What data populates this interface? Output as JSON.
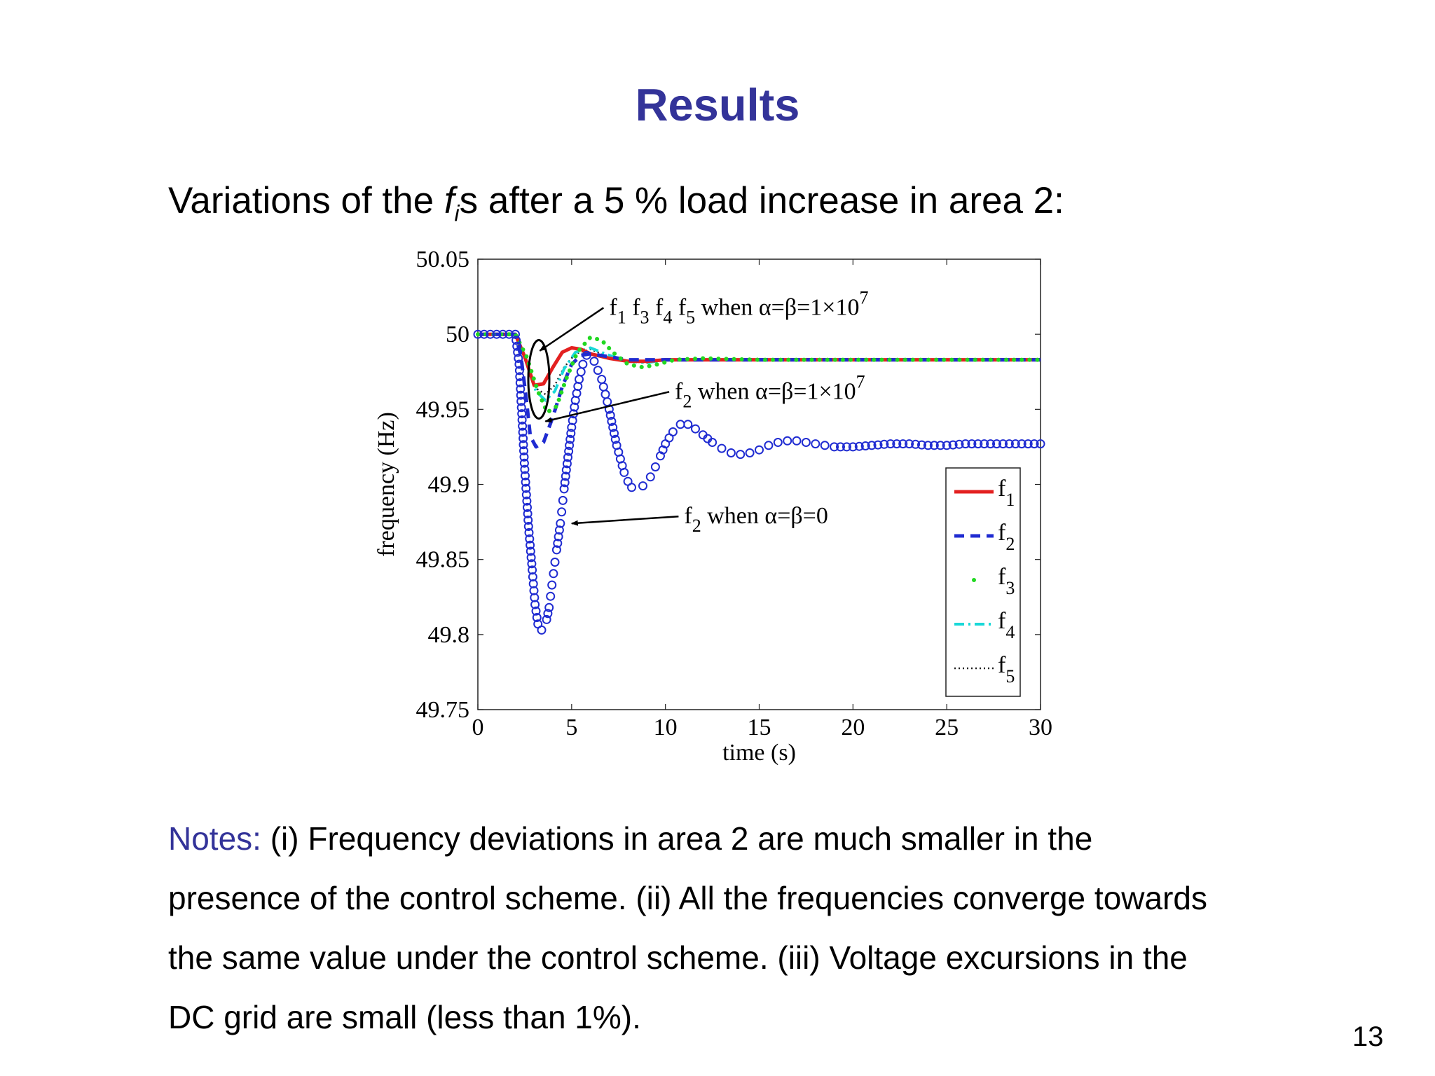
{
  "slide": {
    "title": "Results",
    "subtitle_pre": "Variations of the ",
    "subtitle_f": "f",
    "subtitle_sub": "i",
    "subtitle_post": "s after a 5 % load increase in area 2:",
    "notes_label": "Notes:",
    "notes_text": " (i) Frequency deviations in area 2 are much smaller in the presence of the control scheme. (ii) All the frequencies converge towards the same value under the control scheme. (iii) Voltage excursions in the DC grid are small (less than 1%).",
    "page_number": "13"
  },
  "chart_data": {
    "type": "line",
    "title": "",
    "xlabel": "time (s)",
    "ylabel": "frequency (Hz)",
    "xlim": [
      0,
      30
    ],
    "ylim": [
      49.75,
      50.05
    ],
    "xticks": [
      "0",
      "5",
      "10",
      "15",
      "20",
      "25",
      "30"
    ],
    "yticks": [
      "49.75",
      "49.8",
      "49.85",
      "49.9",
      "49.95",
      "50",
      "50.05"
    ],
    "grid": false,
    "legend_position": "bottom-right",
    "colors": {
      "f1": "#e32020",
      "f2": "#1f2bd1",
      "f3": "#22d822",
      "f4": "#19d8d8",
      "f5": "#222222",
      "f2_alpha_beta_0": "#1f2bd1"
    },
    "series": [
      {
        "name": "f1",
        "label": "1",
        "style": "solid",
        "points": [
          [
            0,
            50
          ],
          [
            2,
            50
          ],
          [
            2.5,
            49.985
          ],
          [
            3,
            49.966
          ],
          [
            3.5,
            49.967
          ],
          [
            4,
            49.978
          ],
          [
            4.5,
            49.988
          ],
          [
            5,
            49.991
          ],
          [
            5.5,
            49.99
          ],
          [
            6,
            49.987
          ],
          [
            7,
            49.984
          ],
          [
            8,
            49.982
          ],
          [
            9,
            49.982
          ],
          [
            10,
            49.983
          ],
          [
            12,
            49.983
          ],
          [
            15,
            49.983
          ],
          [
            20,
            49.983
          ],
          [
            25,
            49.983
          ],
          [
            30,
            49.983
          ]
        ]
      },
      {
        "name": "f2",
        "label": "2",
        "style": "dashed",
        "points": [
          [
            0,
            50
          ],
          [
            2,
            50
          ],
          [
            2.3,
            49.985
          ],
          [
            2.6,
            49.955
          ],
          [
            2.8,
            49.932
          ],
          [
            3.1,
            49.925
          ],
          [
            3.5,
            49.928
          ],
          [
            4,
            49.945
          ],
          [
            4.5,
            49.965
          ],
          [
            5,
            49.98
          ],
          [
            5.5,
            49.986
          ],
          [
            6,
            49.987
          ],
          [
            7,
            49.985
          ],
          [
            8,
            49.983
          ],
          [
            10,
            49.983
          ],
          [
            15,
            49.983
          ],
          [
            20,
            49.983
          ],
          [
            25,
            49.983
          ],
          [
            30,
            49.983
          ]
        ]
      },
      {
        "name": "f3",
        "label": "3",
        "style": "dots",
        "points": [
          [
            0,
            50
          ],
          [
            2,
            50
          ],
          [
            2.6,
            49.985
          ],
          [
            3.2,
            49.962
          ],
          [
            3.7,
            49.948
          ],
          [
            4.2,
            49.952
          ],
          [
            4.7,
            49.97
          ],
          [
            5.3,
            49.988
          ],
          [
            6,
            49.998
          ],
          [
            6.6,
            49.996
          ],
          [
            7.2,
            49.988
          ],
          [
            8,
            49.98
          ],
          [
            8.8,
            49.978
          ],
          [
            9.6,
            49.98
          ],
          [
            10.5,
            49.983
          ],
          [
            12,
            49.984
          ],
          [
            15,
            49.983
          ],
          [
            20,
            49.983
          ],
          [
            25,
            49.983
          ],
          [
            30,
            49.983
          ]
        ]
      },
      {
        "name": "f4",
        "label": "4",
        "style": "dashdot",
        "points": [
          [
            0,
            50
          ],
          [
            2,
            50
          ],
          [
            2.5,
            49.985
          ],
          [
            3.1,
            49.962
          ],
          [
            3.6,
            49.956
          ],
          [
            4.1,
            49.962
          ],
          [
            4.6,
            49.977
          ],
          [
            5.2,
            49.988
          ],
          [
            6,
            49.991
          ],
          [
            7,
            49.986
          ],
          [
            8,
            49.982
          ],
          [
            9,
            49.981
          ],
          [
            10,
            49.983
          ],
          [
            15,
            49.983
          ],
          [
            20,
            49.983
          ],
          [
            25,
            49.983
          ],
          [
            30,
            49.983
          ]
        ]
      },
      {
        "name": "f5",
        "label": "5",
        "style": "dotted",
        "points": [
          [
            0,
            50
          ],
          [
            2,
            50
          ],
          [
            2.5,
            49.985
          ],
          [
            3.1,
            49.964
          ],
          [
            3.6,
            49.96
          ],
          [
            4.1,
            49.966
          ],
          [
            4.6,
            49.978
          ],
          [
            5.2,
            49.987
          ],
          [
            6,
            49.99
          ],
          [
            7,
            49.985
          ],
          [
            8,
            49.982
          ],
          [
            9,
            49.981
          ],
          [
            10,
            49.983
          ],
          [
            15,
            49.983
          ],
          [
            20,
            49.983
          ],
          [
            25,
            49.983
          ],
          [
            30,
            49.983
          ]
        ]
      },
      {
        "name": "",
        "style": "circles",
        "points": [
          [
            0,
            50
          ],
          [
            2,
            50
          ],
          [
            2.2,
            49.98
          ],
          [
            2.5,
            49.91
          ],
          [
            2.7,
            49.872
          ],
          [
            2.9,
            49.843
          ],
          [
            3.05,
            49.82
          ],
          [
            3.2,
            49.807
          ],
          [
            3.4,
            49.803
          ],
          [
            3.6,
            49.806
          ],
          [
            3.8,
            49.818
          ],
          [
            3.95,
            49.833
          ],
          [
            4.15,
            49.852
          ],
          [
            4.4,
            49.874
          ],
          [
            4.6,
            49.897
          ],
          [
            4.8,
            49.918
          ],
          [
            5,
            49.938
          ],
          [
            5.2,
            49.956
          ],
          [
            5.4,
            49.97
          ],
          [
            5.6,
            49.98
          ],
          [
            5.8,
            49.986
          ],
          [
            6,
            49.986
          ],
          [
            6.2,
            49.982
          ],
          [
            6.4,
            49.976
          ],
          [
            6.6,
            49.97
          ],
          [
            6.8,
            49.96
          ],
          [
            7,
            49.95
          ],
          [
            7.2,
            49.938
          ],
          [
            7.4,
            49.926
          ],
          [
            7.6,
            49.917
          ],
          [
            7.8,
            49.908
          ],
          [
            8,
            49.902
          ],
          [
            8.2,
            49.898
          ],
          [
            8.5,
            49.897
          ],
          [
            8.8,
            49.899
          ],
          [
            9.2,
            49.905
          ],
          [
            9.6,
            49.915
          ],
          [
            10,
            49.927
          ],
          [
            10.4,
            49.935
          ],
          [
            10.8,
            49.94
          ],
          [
            11.2,
            49.94
          ],
          [
            11.6,
            49.937
          ],
          [
            12,
            49.933
          ],
          [
            12.5,
            49.928
          ],
          [
            13,
            49.924
          ],
          [
            13.5,
            49.921
          ],
          [
            14,
            49.92
          ],
          [
            14.5,
            49.921
          ],
          [
            15,
            49.923
          ],
          [
            15.5,
            49.926
          ],
          [
            16,
            49.928
          ],
          [
            16.5,
            49.929
          ],
          [
            17,
            49.929
          ],
          [
            17.5,
            49.928
          ],
          [
            18,
            49.927
          ],
          [
            18.5,
            49.926
          ],
          [
            19,
            49.925
          ],
          [
            20,
            49.925
          ],
          [
            21,
            49.926
          ],
          [
            22,
            49.927
          ],
          [
            23,
            49.927
          ],
          [
            24,
            49.926
          ],
          [
            25,
            49.926
          ],
          [
            26,
            49.927
          ],
          [
            27,
            49.927
          ],
          [
            28,
            49.927
          ],
          [
            29,
            49.927
          ],
          [
            30,
            49.927
          ]
        ]
      }
    ],
    "annotations": [
      {
        "text_parts": [
          "f",
          "1",
          " f",
          "3",
          " f",
          "4",
          " f",
          "5",
          " when α=β=1×10",
          "7"
        ],
        "style": "sub",
        "x": 7,
        "y": 50.013,
        "arrow_to": [
          3.3,
          49.989
        ]
      },
      {
        "text_parts": [
          "f",
          "2",
          " when α=β=1×10",
          "7"
        ],
        "x": 10.5,
        "y": 49.957,
        "arrow_to": [
          3.6,
          49.942
        ]
      },
      {
        "text_parts": [
          "f",
          "2",
          " when α=β=0"
        ],
        "x": 11,
        "y": 49.874,
        "arrow_to": [
          5,
          49.874
        ]
      }
    ]
  }
}
